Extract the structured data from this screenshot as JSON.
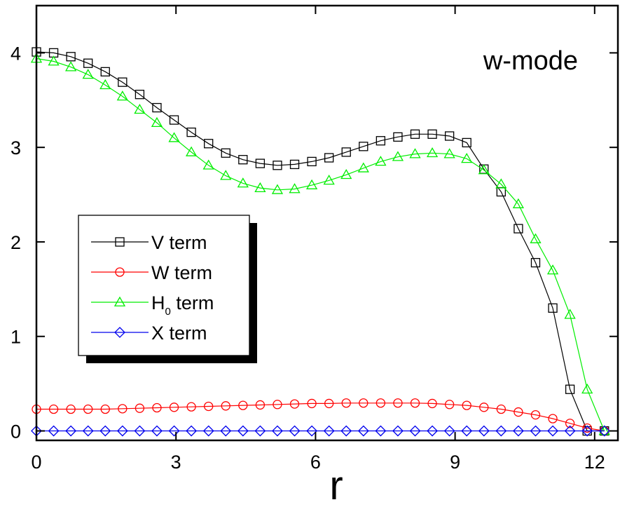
{
  "chart_data": {
    "type": "line",
    "annotation": "w-mode",
    "xlabel": "r",
    "ylabel": "",
    "xlim": [
      0,
      12.5
    ],
    "ylim": [
      -0.1,
      4.5
    ],
    "xticks": [
      "0",
      "3",
      "6",
      "9",
      "12"
    ],
    "yticks": [
      "0",
      "1",
      "2",
      "3",
      "4"
    ],
    "legend": {
      "placement": "center-left",
      "entries": [
        {
          "label": "V term",
          "main": "V term",
          "sub": ""
        },
        {
          "label": "W term",
          "main": "W term",
          "sub": ""
        },
        {
          "label": "H0 term",
          "main": "H",
          "sub": "0",
          "rest": " term"
        },
        {
          "label": "X term",
          "main": "X term",
          "sub": ""
        }
      ]
    },
    "series": [
      {
        "name": "V term",
        "color": "#000000",
        "marker": "square",
        "x": [
          0,
          0.37,
          0.74,
          1.11,
          1.48,
          1.85,
          2.22,
          2.59,
          2.96,
          3.33,
          3.7,
          4.07,
          4.44,
          4.81,
          5.18,
          5.55,
          5.92,
          6.29,
          6.66,
          7.03,
          7.4,
          7.77,
          8.14,
          8.51,
          8.88,
          9.25,
          9.62,
          9.99,
          10.36,
          10.73,
          11.1,
          11.47,
          11.84,
          12.21
        ],
        "y": [
          4.01,
          4.0,
          3.96,
          3.89,
          3.8,
          3.69,
          3.56,
          3.42,
          3.29,
          3.16,
          3.04,
          2.94,
          2.87,
          2.83,
          2.81,
          2.82,
          2.85,
          2.89,
          2.95,
          3.01,
          3.07,
          3.11,
          3.14,
          3.14,
          3.12,
          3.05,
          2.77,
          2.53,
          2.14,
          1.78,
          1.3,
          0.44,
          0.0,
          0.0
        ]
      },
      {
        "name": "W term",
        "color": "#ff0000",
        "marker": "circle",
        "x": [
          0,
          0.37,
          0.74,
          1.11,
          1.48,
          1.85,
          2.22,
          2.59,
          2.96,
          3.33,
          3.7,
          4.07,
          4.44,
          4.81,
          5.18,
          5.55,
          5.92,
          6.29,
          6.66,
          7.03,
          7.4,
          7.77,
          8.14,
          8.51,
          8.88,
          9.25,
          9.62,
          9.99,
          10.36,
          10.73,
          11.1,
          11.47,
          11.84,
          12.21
        ],
        "y": [
          0.23,
          0.23,
          0.23,
          0.23,
          0.23,
          0.235,
          0.24,
          0.245,
          0.25,
          0.255,
          0.26,
          0.265,
          0.27,
          0.275,
          0.28,
          0.285,
          0.29,
          0.29,
          0.295,
          0.295,
          0.295,
          0.295,
          0.295,
          0.29,
          0.28,
          0.27,
          0.25,
          0.23,
          0.2,
          0.17,
          0.13,
          0.08,
          0.03,
          0.0
        ]
      },
      {
        "name": "H0 term",
        "color": "#00ee00",
        "marker": "triangle",
        "x": [
          0,
          0.37,
          0.74,
          1.11,
          1.48,
          1.85,
          2.22,
          2.59,
          2.96,
          3.33,
          3.7,
          4.07,
          4.44,
          4.81,
          5.18,
          5.55,
          5.92,
          6.29,
          6.66,
          7.03,
          7.4,
          7.77,
          8.14,
          8.51,
          8.88,
          9.25,
          9.62,
          9.99,
          10.36,
          10.73,
          11.1,
          11.47,
          11.84,
          12.21
        ],
        "y": [
          3.94,
          3.91,
          3.85,
          3.77,
          3.66,
          3.54,
          3.4,
          3.26,
          3.1,
          2.95,
          2.81,
          2.7,
          2.62,
          2.57,
          2.55,
          2.56,
          2.6,
          2.65,
          2.71,
          2.78,
          2.85,
          2.9,
          2.93,
          2.94,
          2.93,
          2.88,
          2.76,
          2.61,
          2.4,
          2.03,
          1.7,
          1.23,
          0.44,
          0.0
        ]
      },
      {
        "name": "X term",
        "color": "#0000ee",
        "marker": "diamond",
        "x": [
          0,
          0.37,
          0.74,
          1.11,
          1.48,
          1.85,
          2.22,
          2.59,
          2.96,
          3.33,
          3.7,
          4.07,
          4.44,
          4.81,
          5.18,
          5.55,
          5.92,
          6.29,
          6.66,
          7.03,
          7.4,
          7.77,
          8.14,
          8.51,
          8.88,
          9.25,
          9.62,
          9.99,
          10.36,
          10.73,
          11.1,
          11.47,
          11.84,
          12.21
        ],
        "y": [
          0.0,
          0.0,
          0.0,
          0.0,
          0.0,
          0.0,
          0.0,
          0.0,
          0.0,
          0.0,
          0.0,
          0.0,
          0.0,
          0.0,
          0.0,
          0.0,
          0.0,
          0.0,
          0.0,
          0.0,
          0.0,
          0.0,
          0.0,
          0.0,
          0.0,
          0.0,
          0.0,
          0.0,
          0.0,
          0.0,
          0.0,
          0.0,
          0.0,
          0.0
        ]
      }
    ]
  }
}
